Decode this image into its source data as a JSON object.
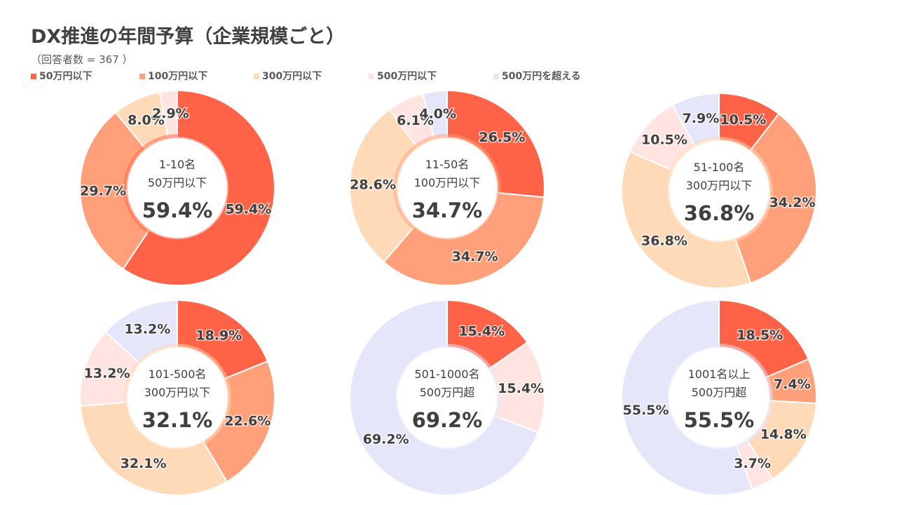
{
  "title": "DX推進の年間予算（企業規模ごと）",
  "subtitle": "（回答者数 = 367 ）",
  "chart_data": {
    "type": "pie",
    "colors": [
      "#FF6347",
      "#FFA07A",
      "#FFDAB9",
      "#FFE4E1",
      "#E6E6FA"
    ],
    "legend": [
      "50万円以下",
      "100万円以下",
      "300万円以下",
      "500万円以下",
      "500万円を超える"
    ],
    "legend_position": "top-left",
    "charts": [
      {
        "group": "1-10名",
        "top": "50万円以下",
        "top_index": 0,
        "top_value": "59.4%",
        "values": [
          59.4,
          29.7,
          8.0,
          2.9,
          0
        ]
      },
      {
        "group": "11-50名",
        "top": "100万円以下",
        "top_index": 1,
        "top_value": "34.7%",
        "values": [
          26.5,
          34.7,
          28.6,
          6.1,
          4.0
        ]
      },
      {
        "group": "51-100名",
        "top": "300万円以下",
        "top_index": 2,
        "top_value": "36.8%",
        "values": [
          10.5,
          34.2,
          36.8,
          10.5,
          7.9
        ]
      },
      {
        "group": "101-500名",
        "top": "300万円以下",
        "top_index": 2,
        "top_value": "32.1%",
        "values": [
          18.9,
          22.6,
          32.1,
          13.2,
          13.2
        ]
      },
      {
        "group": "501-1000名",
        "top": "500万円超",
        "top_index": 4,
        "top_value": "69.2%",
        "values": [
          15.4,
          0,
          0,
          15.4,
          69.2
        ]
      },
      {
        "group": "1001名以上",
        "top": "500万円超",
        "top_index": 4,
        "top_value": "55.5%",
        "values": [
          18.5,
          7.4,
          14.8,
          3.7,
          55.5
        ]
      }
    ]
  }
}
